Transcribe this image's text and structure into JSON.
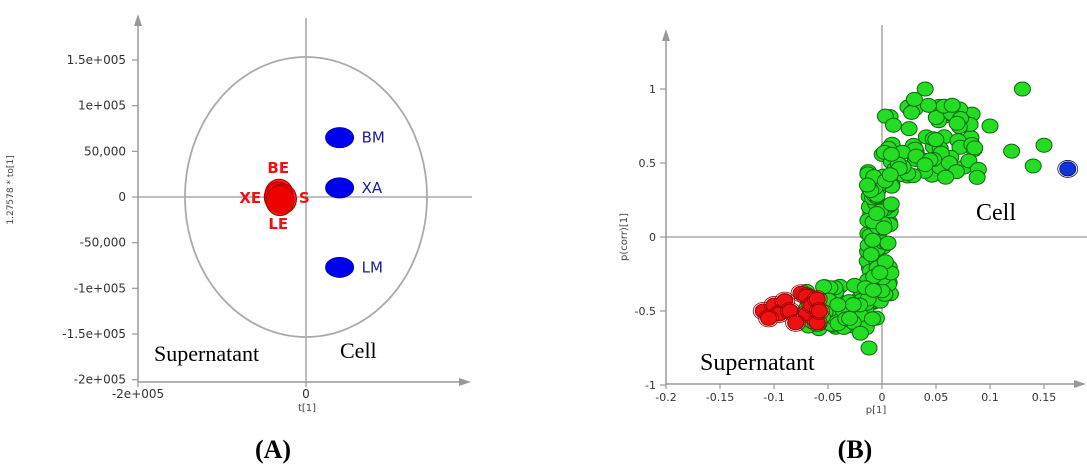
{
  "chart_data": [
    {
      "type": "scatter",
      "panel": "A",
      "xlabel": "t[1]",
      "ylabel": "1.27578 * to[1]",
      "xlim": [
        -200000,
        200000
      ],
      "ylim": [
        -200000,
        200000
      ],
      "xtick_labels": [
        "-2e+005",
        "0"
      ],
      "ytick_labels": [
        "1.5e+005",
        "1e+005",
        "50,000",
        "0",
        "-50,000",
        "-1e+005",
        "-1.5e+005",
        "-2e+005"
      ],
      "ytick_values": [
        150000,
        100000,
        50000,
        0,
        -50000,
        -100000,
        -150000,
        -200000
      ],
      "region_labels": [
        "Supernatant",
        "Cell"
      ],
      "points": [
        {
          "label": "BM",
          "x": 40000,
          "y": 65000,
          "color": "#0000ee"
        },
        {
          "label": "XA",
          "x": 40000,
          "y": 10000,
          "color": "#0000ee"
        },
        {
          "label": "LM",
          "x": 40000,
          "y": -77000,
          "color": "#0000ee"
        },
        {
          "label": "BE",
          "x": -32000,
          "y": 3000,
          "color": "#ee0000"
        },
        {
          "label": "XE",
          "x": -33000,
          "y": 0,
          "color": "#ee0000"
        },
        {
          "label": "S",
          "x": -28000,
          "y": -2000,
          "color": "#ee0000"
        },
        {
          "label": "LE",
          "x": -31000,
          "y": -4000,
          "color": "#ee0000"
        }
      ],
      "ellipse": {
        "cx": 0,
        "cy": 0,
        "rx": 130000,
        "ry": 150000
      },
      "panel_label": "(A)"
    },
    {
      "type": "scatter",
      "panel": "B",
      "xlabel": "p[1]",
      "ylabel": "p(corr)[1]",
      "xlim": [
        -0.2,
        0.2
      ],
      "ylim": [
        -1,
        1.2
      ],
      "xtick_labels": [
        "-0.2",
        "-0.15",
        "-0.1",
        "-0.05",
        "0",
        "0.05",
        "0.1",
        "0.15"
      ],
      "xtick_values": [
        -0.2,
        -0.15,
        -0.1,
        -0.05,
        0,
        0.05,
        0.1,
        0.15
      ],
      "ytick_labels": [
        "1",
        "0.5",
        "0",
        "-0.5",
        "-1"
      ],
      "ytick_values": [
        1,
        0.5,
        0,
        -0.5,
        -1
      ],
      "region_labels": [
        "Cell",
        "Supernatant"
      ],
      "colors": {
        "green": "#22dd22",
        "red": "#ee1111",
        "blue": "#1133dd"
      },
      "panel_label": "(B)"
    }
  ]
}
